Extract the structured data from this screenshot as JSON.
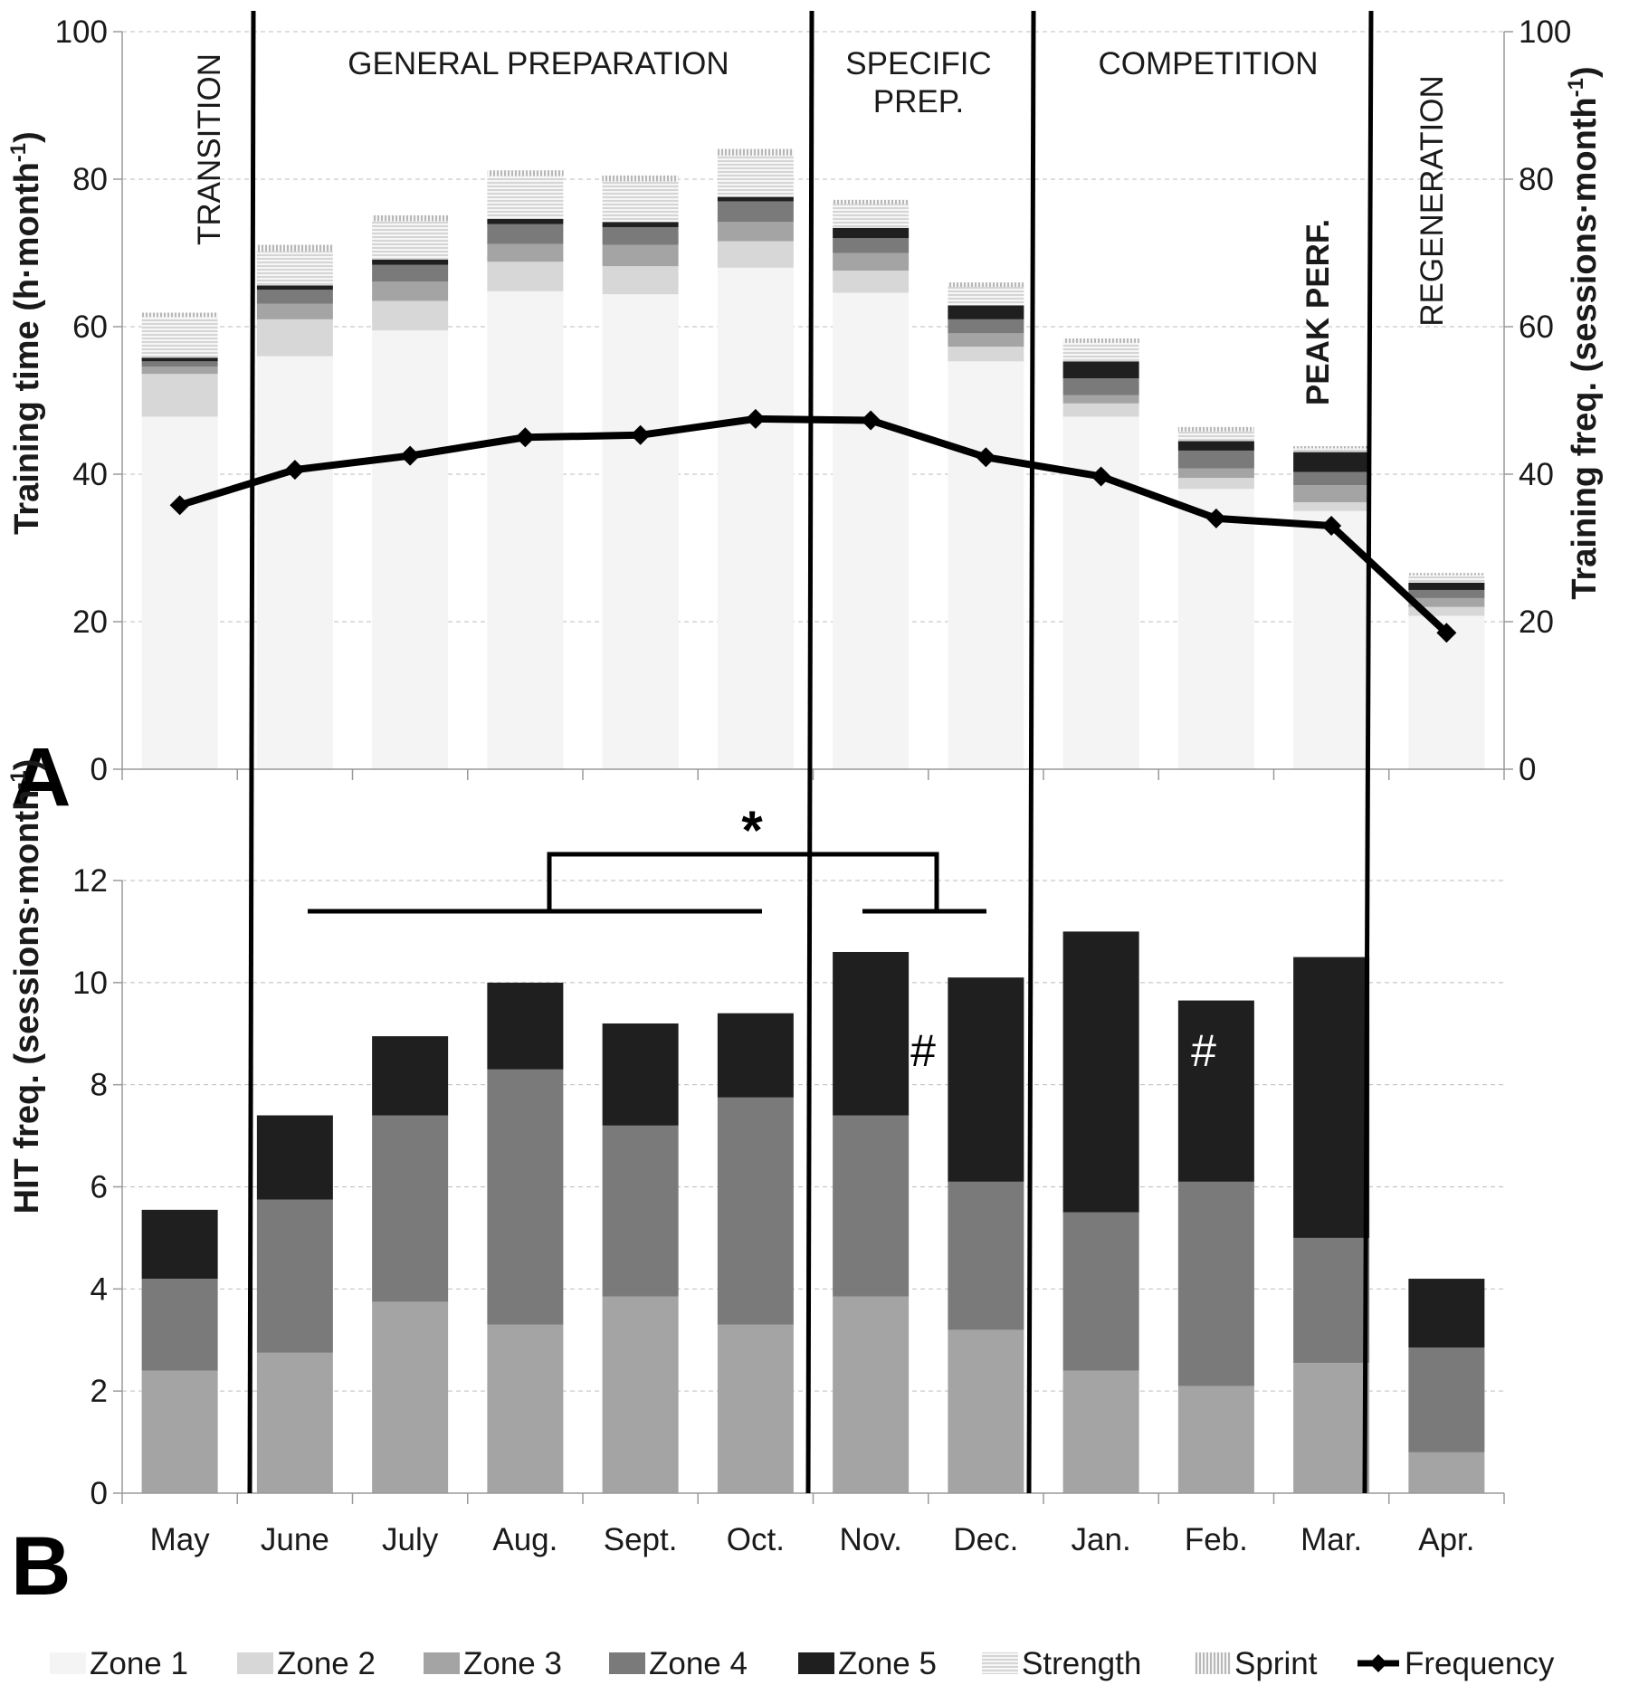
{
  "figure": {
    "panel_a_label": "A",
    "panel_b_label": "B"
  },
  "phases": [
    {
      "label": "TRANSITION"
    },
    {
      "label": "GENERAL PREPARATION"
    },
    {
      "label": "SPECIFIC",
      "label2": "PREP."
    },
    {
      "label": "COMPETITION"
    },
    {
      "label": "REGENERATION"
    }
  ],
  "annotations": {
    "peak": "PEAK PERF.",
    "star": "*",
    "hash": "#"
  },
  "legend": [
    {
      "name": "Zone 1",
      "color": "#f4f4f4"
    },
    {
      "name": "Zone 2",
      "color": "#d7d7d7"
    },
    {
      "name": "Zone 3",
      "color": "#a4a4a4"
    },
    {
      "name": "Zone 4",
      "color": "#7a7a7a"
    },
    {
      "name": "Zone 5",
      "color": "#1f1f1f"
    },
    {
      "name": "Strength",
      "color": "#ededed",
      "pattern": "horizontal-lines"
    },
    {
      "name": "Sprint",
      "color": "#ededed",
      "pattern": "vertical-lines"
    },
    {
      "name": "Frequency",
      "color": "#000000",
      "marker": "diamond-line"
    }
  ],
  "chart_data": [
    {
      "type": "bar",
      "stacked": true,
      "ylabel": "Training time (h·month",
      "ylabel_sup": "-1",
      "ylabel_close": ")",
      "ylim": [
        0,
        100
      ],
      "yticks": [
        0,
        20,
        40,
        60,
        80,
        100
      ],
      "y2label": "Training freq. (sessions·month",
      "y2label_sup": "-1",
      "y2label_close": ")",
      "y2lim": [
        0,
        100
      ],
      "y2ticks": [
        0,
        20,
        40,
        60,
        80,
        100
      ],
      "grid": true,
      "categories": [
        "May",
        "June",
        "July",
        "Aug.",
        "Sept.",
        "Oct.",
        "Nov.",
        "Dec.",
        "Jan.",
        "Feb.",
        "Mar.",
        "Apr."
      ],
      "series": [
        {
          "name": "Zone 1",
          "values": [
            47.8,
            56.0,
            59.5,
            64.8,
            64.4,
            68.0,
            64.6,
            55.3,
            47.8,
            38.0,
            35.0,
            20.8
          ]
        },
        {
          "name": "Zone 2",
          "values": [
            5.8,
            5.0,
            4.0,
            4.0,
            3.8,
            3.6,
            3.0,
            2.0,
            1.8,
            1.5,
            1.2,
            1.2
          ]
        },
        {
          "name": "Zone 3",
          "values": [
            1.0,
            2.1,
            2.6,
            2.4,
            2.9,
            2.6,
            2.4,
            1.8,
            1.1,
            1.3,
            2.3,
            1.2
          ]
        },
        {
          "name": "Zone 4",
          "values": [
            0.7,
            1.9,
            2.3,
            2.7,
            2.4,
            2.8,
            2.0,
            1.9,
            2.3,
            2.4,
            1.8,
            1.1
          ]
        },
        {
          "name": "Zone 5",
          "values": [
            0.5,
            0.6,
            0.7,
            0.7,
            0.7,
            0.6,
            1.4,
            1.9,
            2.3,
            1.3,
            2.7,
            1.0
          ]
        },
        {
          "name": "Strength",
          "values": [
            5.5,
            4.6,
            5.2,
            5.8,
            5.5,
            5.6,
            3.2,
            2.5,
            2.5,
            1.3,
            0.5,
            1.0
          ]
        },
        {
          "name": "Sprint",
          "values": [
            0.6,
            0.9,
            0.8,
            0.8,
            0.8,
            0.9,
            0.6,
            0.6,
            0.6,
            0.6,
            0.3,
            0.3
          ]
        }
      ],
      "line": {
        "name": "Frequency",
        "axis": "y2",
        "values": [
          35.8,
          40.6,
          42.5,
          45.0,
          45.3,
          47.5,
          47.3,
          42.3,
          39.7,
          34.0,
          33.0,
          18.5
        ]
      }
    },
    {
      "type": "bar",
      "stacked": true,
      "ylabel": "HIT freq. (sessions·month",
      "ylabel_sup": "-1",
      "ylabel_close": ")",
      "ylim": [
        0,
        12
      ],
      "yticks": [
        0,
        2,
        4,
        6,
        8,
        10,
        12
      ],
      "grid": true,
      "categories": [
        "May",
        "June",
        "July",
        "Aug.",
        "Sept.",
        "Oct.",
        "Nov.",
        "Dec.",
        "Jan.",
        "Feb.",
        "Mar.",
        "Apr."
      ],
      "series": [
        {
          "name": "Zone 3",
          "values": [
            2.4,
            2.75,
            3.75,
            3.3,
            3.85,
            3.3,
            3.85,
            3.2,
            2.4,
            2.1,
            2.55,
            0.8
          ]
        },
        {
          "name": "Zone 4",
          "values": [
            1.8,
            3.0,
            3.65,
            5.0,
            3.35,
            4.45,
            3.55,
            2.9,
            3.1,
            4.0,
            2.45,
            2.05
          ]
        },
        {
          "name": "Zone 5",
          "values": [
            1.35,
            1.65,
            1.55,
            1.7,
            2.0,
            1.65,
            3.2,
            4.0,
            5.5,
            3.55,
            5.5,
            1.35
          ]
        }
      ]
    }
  ]
}
